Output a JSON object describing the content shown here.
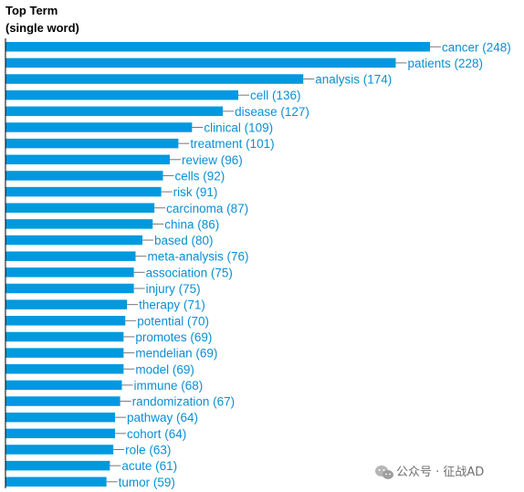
{
  "chart_data": {
    "type": "bar",
    "orientation": "horizontal",
    "title_lines": [
      "Top Term",
      "(single word)"
    ],
    "categories": [
      "cancer",
      "patients",
      "analysis",
      "cell",
      "disease",
      "clinical",
      "treatment",
      "review",
      "cells",
      "risk",
      "carcinoma",
      "china",
      "based",
      "meta-analysis",
      "association",
      "injury",
      "therapy",
      "potential",
      "promotes",
      "mendelian",
      "model",
      "immune",
      "randomization",
      "pathway",
      "cohort",
      "role",
      "acute",
      "tumor"
    ],
    "values": [
      248,
      228,
      174,
      136,
      127,
      109,
      101,
      96,
      92,
      91,
      87,
      86,
      80,
      76,
      75,
      75,
      71,
      70,
      69,
      69,
      69,
      68,
      67,
      64,
      64,
      63,
      61,
      59
    ],
    "labels": [
      "cancer (248)",
      "patients (228)",
      "analysis (174)",
      "cell (136)",
      "disease (127)",
      "clinical (109)",
      "treatment (101)",
      "review (96)",
      "cells (92)",
      "risk (91)",
      "carcinoma (87)",
      "china (86)",
      "based (80)",
      "meta-analysis (76)",
      "association (75)",
      "injury (75)",
      "therapy (71)",
      "potential (70)",
      "promotes (69)",
      "mendelian (69)",
      "model (69)",
      "immune (68)",
      "randomization (67)",
      "pathway (64)",
      "cohort (64)",
      "role (63)",
      "acute (61)",
      "tumor (59)"
    ],
    "xlim": [
      0,
      248
    ],
    "grid": false,
    "legend": "none",
    "colors": {
      "bar": "#0099e0",
      "label": "#0a8fd4",
      "leader": "#777777",
      "axis": "#000000"
    }
  },
  "watermark": {
    "text": "公众号 · 征战AD",
    "icon": "wechat-icon",
    "color": "#6f6f6f"
  }
}
